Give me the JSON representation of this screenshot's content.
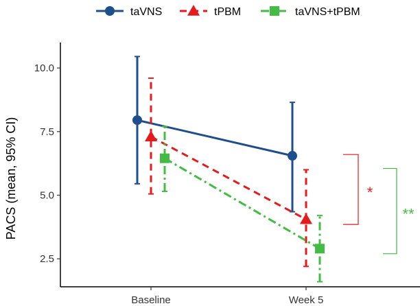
{
  "chart_data": {
    "type": "line",
    "categories": [
      "Baseline",
      "Week 5"
    ],
    "ylabel": "PACS (mean, 95% CI)",
    "ylim": [
      1.4,
      11.0
    ],
    "yticks": [
      2.5,
      5.0,
      7.5,
      10.0
    ],
    "ytick_labels": [
      "2.5",
      "5.0",
      "7.5",
      "10.0"
    ],
    "legend_position": "top",
    "grid": false,
    "series": [
      {
        "name": "taVNS",
        "color": "#1f4e8c",
        "marker": "circle",
        "dash": "solid",
        "values": [
          7.95,
          6.55
        ],
        "ci_low": [
          5.45,
          4.35
        ],
        "ci_high": [
          10.45,
          8.65
        ]
      },
      {
        "name": "tPBM",
        "color": "#e41a1c",
        "marker": "triangle",
        "dash": "dashed",
        "values": [
          7.3,
          4.05
        ],
        "ci_low": [
          5.05,
          2.2
        ],
        "ci_high": [
          9.6,
          6.0
        ]
      },
      {
        "name": "taVNS+tPBM",
        "color": "#44bb44",
        "marker": "square",
        "dash": "dashdot",
        "values": [
          6.45,
          2.9
        ],
        "ci_low": [
          5.15,
          1.6
        ],
        "ci_high": [
          7.7,
          4.2
        ]
      }
    ],
    "annotations": [
      {
        "text": "*",
        "color": "#e41a1c",
        "y_top": 6.6,
        "y_bottom": 3.85
      },
      {
        "text": "**",
        "color": "#44bb44",
        "y_top": 6.05,
        "y_bottom": 2.7
      }
    ]
  }
}
